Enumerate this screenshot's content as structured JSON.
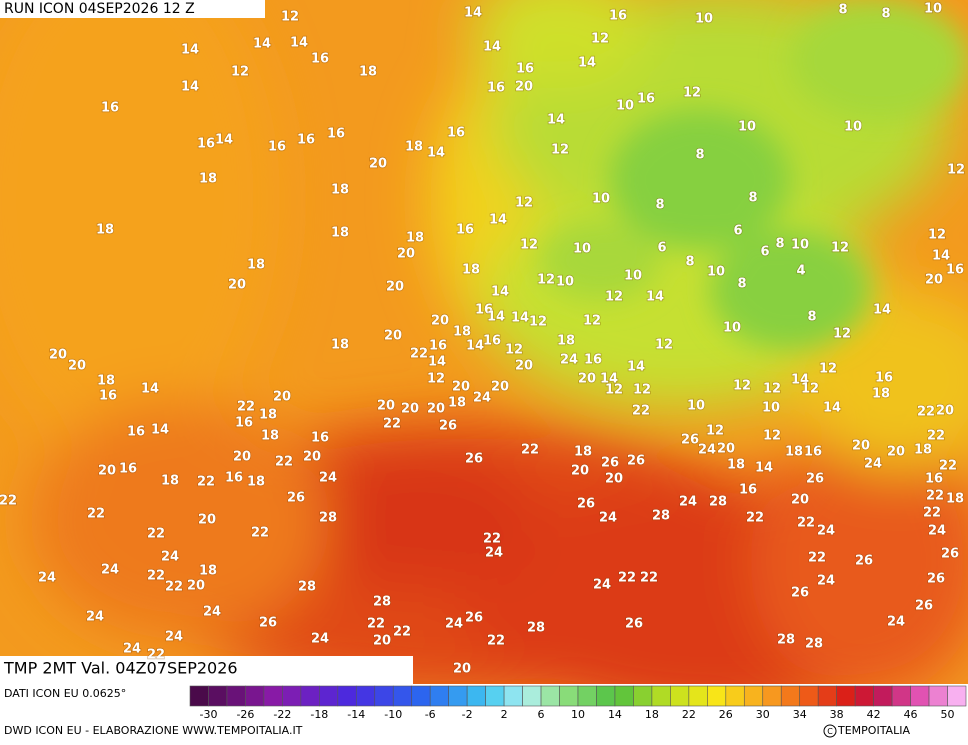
{
  "header": {
    "title": "RUN ICON 04SEP2026 12 Z"
  },
  "map": {
    "field_title": "TMP 2MT Val. 04Z07SEP2026",
    "labels": [
      12,
      14,
      16,
      10,
      8,
      8,
      10,
      14,
      14,
      14,
      12,
      12,
      16,
      18,
      14,
      16,
      14,
      14,
      16,
      16,
      20,
      16,
      10,
      12,
      14,
      10,
      10,
      16,
      14,
      16,
      16,
      16,
      16,
      18,
      14,
      12,
      8,
      20,
      18,
      18,
      12,
      10,
      8,
      8,
      12,
      14,
      16,
      18,
      18,
      18,
      6,
      12,
      12,
      10,
      6,
      8,
      6,
      8,
      10,
      12,
      14,
      18,
      20,
      18,
      12,
      10,
      10,
      10,
      4,
      16,
      8,
      20,
      20,
      20,
      14,
      12,
      14,
      16,
      14,
      14,
      12,
      20,
      18,
      12,
      8,
      14,
      10,
      12,
      20,
      18,
      22,
      16,
      14,
      16,
      12,
      18,
      12,
      20,
      20,
      14,
      20,
      24,
      16,
      14,
      12,
      14,
      18,
      14,
      12,
      20,
      20,
      20,
      14,
      12,
      12,
      12,
      16,
      20,
      16,
      22,
      18,
      20,
      20,
      20,
      18,
      24,
      12,
      12,
      10,
      10,
      14,
      18,
      22,
      20,
      16,
      16,
      14,
      18,
      16,
      22,
      26,
      22,
      12,
      26,
      12,
      22,
      20,
      22,
      20,
      22,
      26,
      18,
      26,
      26,
      24,
      20,
      18,
      18,
      16,
      20,
      20,
      18,
      24,
      22,
      20,
      16,
      16,
      18,
      24,
      18,
      22,
      20,
      20,
      14,
      16,
      22,
      26,
      26,
      24,
      28,
      16,
      20,
      26,
      22,
      22,
      20,
      28,
      24,
      28,
      22,
      22,
      24,
      22,
      18,
      24,
      22,
      22,
      22,
      24,
      26,
      24,
      22,
      26,
      18,
      24,
      22,
      22,
      20,
      24,
      24,
      28,
      24,
      22,
      22,
      26,
      26,
      28,
      24,
      24,
      26,
      26,
      22,
      22,
      24,
      26,
      28,
      26,
      24,
      24,
      24,
      20,
      22,
      24,
      22,
      28,
      28,
      20
    ]
  },
  "scale": {
    "source": "DATI ICON EU 0.0625°",
    "ticks": [
      -30,
      -26,
      -22,
      -18,
      -14,
      -10,
      -6,
      -2,
      2,
      6,
      10,
      14,
      18,
      22,
      26,
      30,
      34,
      38,
      42,
      46,
      50
    ]
  },
  "footer": {
    "credit": "DWD ICON EU - ELABORAZIONE WWW.TEMPOITALIA.IT",
    "brand": "TEMPOITALIA"
  }
}
